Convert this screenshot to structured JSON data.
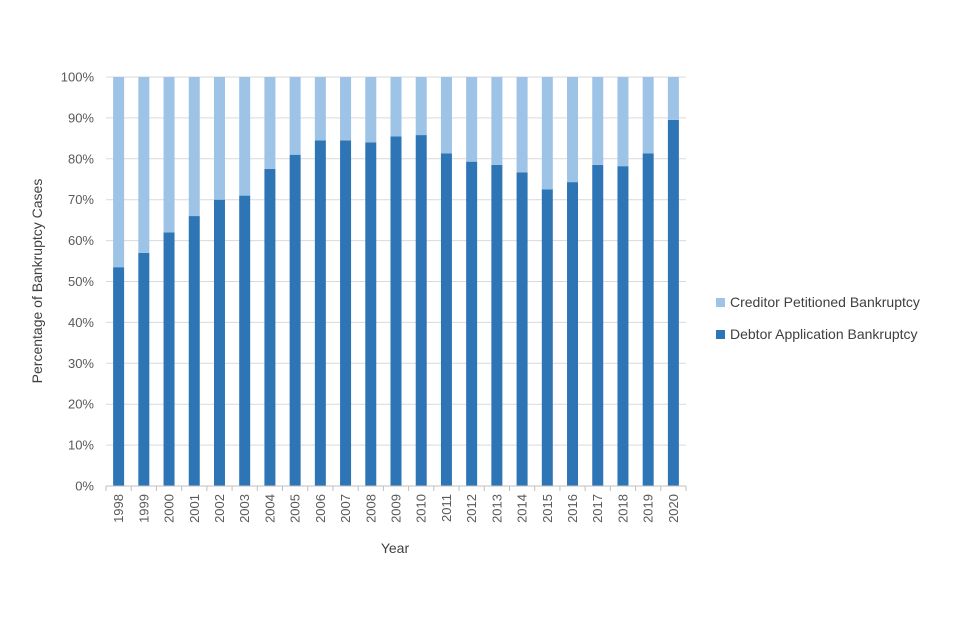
{
  "chart_data": {
    "type": "bar",
    "stacked": true,
    "percent_stacked": true,
    "categories": [
      "1998",
      "1999",
      "2000",
      "2001",
      "2002",
      "2003",
      "2004",
      "2005",
      "2006",
      "2007",
      "2008",
      "2009",
      "2010",
      "2011",
      "2012",
      "2013",
      "2014",
      "2015",
      "2016",
      "2017",
      "2018",
      "2019",
      "2020"
    ],
    "series": [
      {
        "name": "Debtor Application Bankruptcy",
        "color": "#2E75B6",
        "values": [
          53.5,
          57,
          62,
          66,
          70,
          71,
          77.5,
          81,
          84.5,
          84.5,
          84,
          85.5,
          85.8,
          81.3,
          79.3,
          78.5,
          76.7,
          72.5,
          74.3,
          78.5,
          78.2,
          81.3,
          89.5
        ]
      },
      {
        "name": "Creditor Petitioned Bankruptcy",
        "color": "#9DC3E6",
        "values": [
          46.5,
          43,
          38,
          34,
          30,
          29,
          22.5,
          19,
          15.5,
          15.5,
          16,
          14.5,
          14.2,
          18.7,
          20.7,
          21.5,
          23.3,
          27.5,
          25.7,
          21.5,
          21.8,
          18.7,
          10.5
        ]
      }
    ],
    "yticks": [
      "0%",
      "10%",
      "20%",
      "30%",
      "40%",
      "50%",
      "60%",
      "70%",
      "80%",
      "90%",
      "100%"
    ],
    "ylim": [
      0,
      100
    ],
    "xlabel": "Year",
    "ylabel": "Percentage of Bankruptcy Cases",
    "grid": true,
    "legend_position": "right",
    "legend": [
      {
        "label": "Creditor Petitioned Bankruptcy",
        "color": "#9DC3E6"
      },
      {
        "label": "Debtor Application Bankruptcy",
        "color": "#2E75B6"
      }
    ]
  }
}
